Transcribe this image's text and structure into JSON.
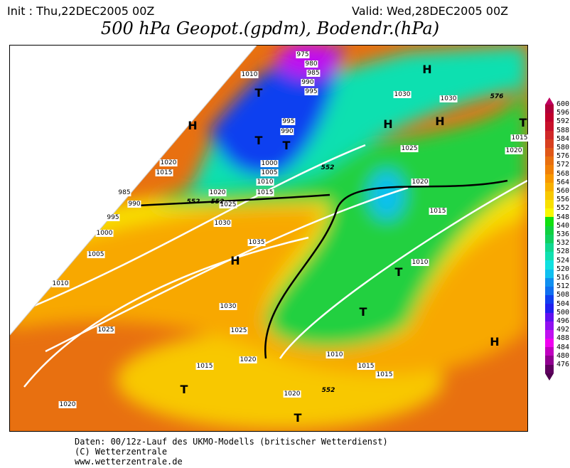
{
  "header": {
    "init": "Init : Thu,22DEC2005 00Z",
    "valid": "Valid: Wed,28DEC2005 00Z",
    "title": "500 hPa Geopot.(gpdm), Bodendr.(hPa)"
  },
  "isobar_labels": [
    "975",
    "980",
    "985",
    "990",
    "995",
    "1010",
    "995",
    "990",
    "1000",
    "1005",
    "1010",
    "1015",
    "1020",
    "1015",
    "985",
    "990",
    "995",
    "1000",
    "1005",
    "1010",
    "1020",
    "1025",
    "1030",
    "1035",
    "1030",
    "1025",
    "1025",
    "1020",
    "1015",
    "1020",
    "1020",
    "1010",
    "1015",
    "1015",
    "1010",
    "1015",
    "1020",
    "1025",
    "1030",
    "1030",
    "1020",
    "1015"
  ],
  "pressure_centers": [
    "H",
    "H",
    "H",
    "H",
    "H",
    "H",
    "T",
    "T",
    "T",
    "T",
    "T",
    "T",
    "T",
    "T"
  ],
  "contour_labels": [
    "552",
    "552",
    "552",
    "552",
    "576"
  ],
  "colorbar": {
    "labels": [
      "600",
      "596",
      "592",
      "588",
      "584",
      "580",
      "576",
      "572",
      "568",
      "564",
      "560",
      "556",
      "552",
      "548",
      "540",
      "536",
      "532",
      "528",
      "524",
      "520",
      "516",
      "512",
      "508",
      "504",
      "500",
      "496",
      "492",
      "488",
      "484",
      "480",
      "476"
    ],
    "colors": [
      "#b0003a",
      "#c0002c",
      "#c8102a",
      "#d02828",
      "#d84020",
      "#e05818",
      "#e87010",
      "#f08008",
      "#f89800",
      "#f8b000",
      "#f8c800",
      "#f8e000",
      "#f8f800",
      "#10e010",
      "#10d040",
      "#10d060",
      "#10d890",
      "#10e0b0",
      "#10e0e0",
      "#10c0f0",
      "#1090f0",
      "#1070f0",
      "#1040f0",
      "#2020f0",
      "#6010f0",
      "#9010f0",
      "#c010f0",
      "#f000f0",
      "#c000c0",
      "#900090",
      "#600060"
    ]
  },
  "footer": {
    "line1": "Daten: 00/12z-Lauf des UKMO-Modells (britischer Wetterdienst)",
    "line2": "(C) Wetterzentrale",
    "line3": "www.wetterzentrale.de"
  }
}
